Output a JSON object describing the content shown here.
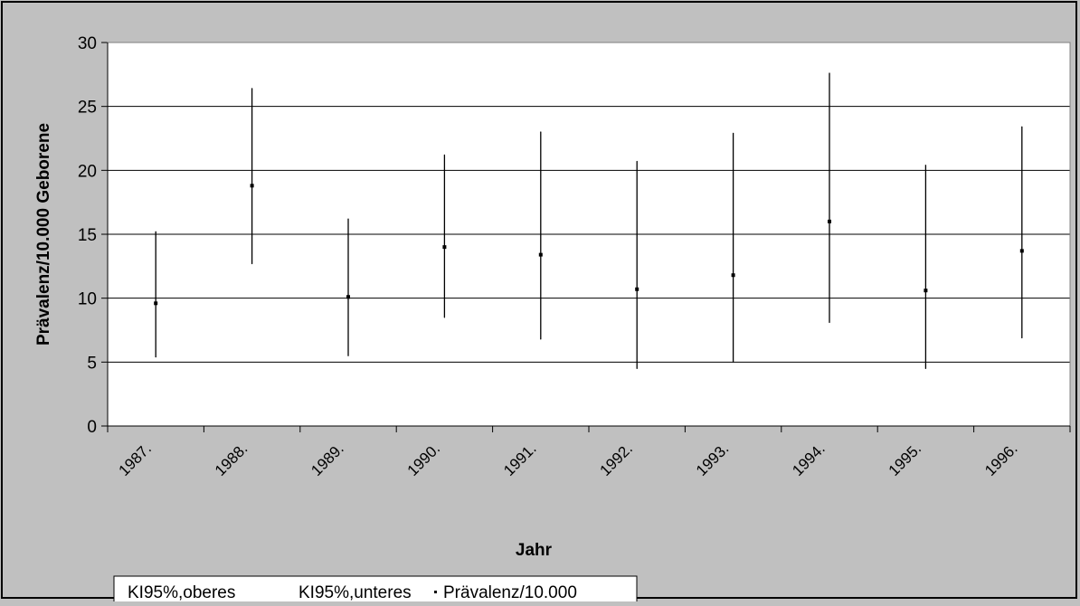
{
  "chart_data": {
    "type": "scatter",
    "title": "",
    "xlabel": "Jahr",
    "ylabel": "Prävalenz/10.000 Geborene",
    "categories": [
      "1987.",
      "1988.",
      "1989.",
      "1990.",
      "1991.",
      "1992.",
      "1993.",
      "1994.",
      "1995.",
      "1996."
    ],
    "ylim": [
      0,
      30
    ],
    "yticks": [
      "0",
      "5",
      "10",
      "15",
      "20",
      "25",
      "30"
    ],
    "grid": true,
    "legend_position": "bottom-left",
    "series": [
      {
        "name": "KI95%,oberes",
        "values": [
          15.2,
          26.4,
          16.2,
          21.2,
          23.0,
          20.7,
          22.9,
          27.6,
          20.4,
          23.4
        ]
      },
      {
        "name": "KI95%,unteres",
        "values": [
          5.4,
          12.7,
          5.5,
          8.5,
          6.8,
          4.5,
          5.0,
          8.1,
          4.5,
          6.9
        ]
      },
      {
        "name": "Prävalenz/10.000",
        "values": [
          9.6,
          18.8,
          10.1,
          14.0,
          13.4,
          10.7,
          11.8,
          16.0,
          10.6,
          13.7
        ]
      }
    ],
    "colors": {
      "background": "#c0c0c0",
      "plot_area": "#ffffff",
      "ink": "#000000"
    }
  }
}
